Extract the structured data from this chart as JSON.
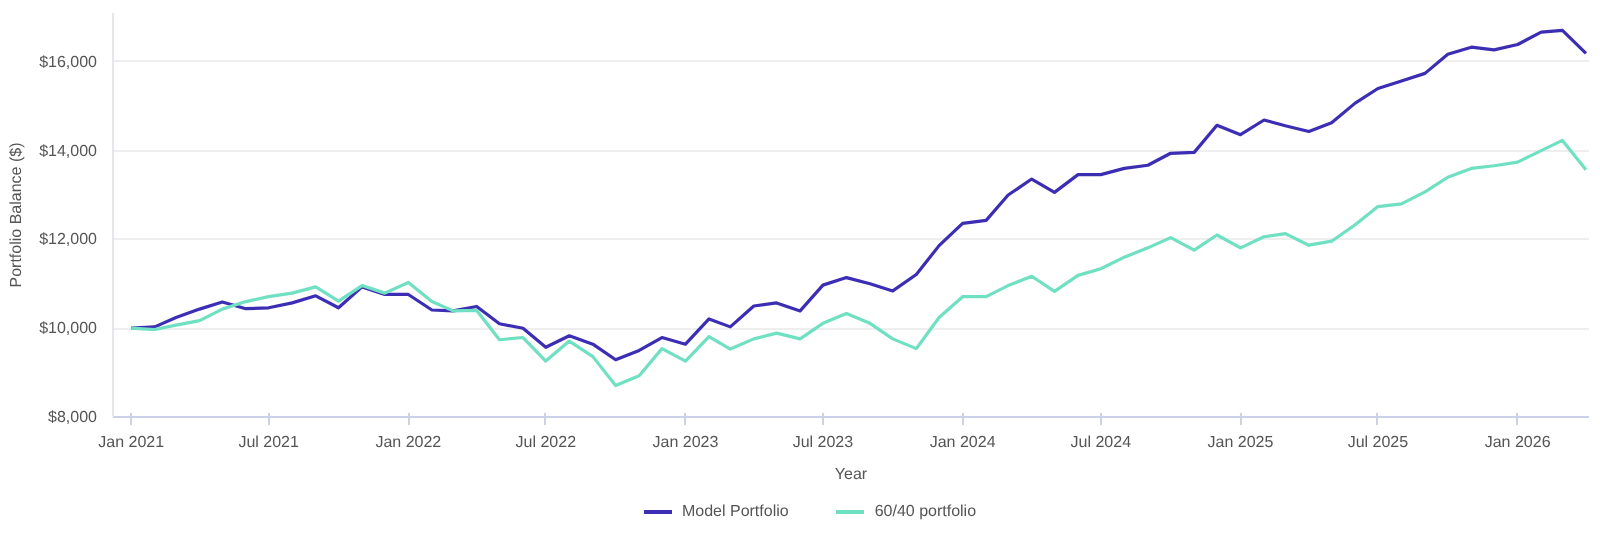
{
  "chart_data": {
    "type": "line",
    "xlabel": "Year",
    "ylabel": "Portfolio Balance ($)",
    "x": [
      "2021-01",
      "2021-02",
      "2021-03",
      "2021-04",
      "2021-05",
      "2021-06",
      "2021-07",
      "2021-08",
      "2021-09",
      "2021-10",
      "2021-11",
      "2021-12",
      "2022-01",
      "2022-02",
      "2022-03",
      "2022-04",
      "2022-05",
      "2022-06",
      "2022-07",
      "2022-08",
      "2022-09",
      "2022-10",
      "2022-11",
      "2022-12",
      "2023-01",
      "2023-02",
      "2023-03",
      "2023-04",
      "2023-05",
      "2023-06",
      "2023-07",
      "2023-08",
      "2023-09",
      "2023-10",
      "2023-11",
      "2023-12",
      "2024-01",
      "2024-02",
      "2024-03",
      "2024-04",
      "2024-05",
      "2024-06",
      "2024-07",
      "2024-08",
      "2024-09",
      "2024-10",
      "2024-11",
      "2024-12",
      "2025-01",
      "2025-02",
      "2025-03",
      "2025-04",
      "2025-05",
      "2025-06",
      "2025-07",
      "2025-08",
      "2025-09",
      "2025-10",
      "2025-11",
      "2025-12",
      "2026-01",
      "2026-02",
      "2026-03",
      "2026-04"
    ],
    "series": [
      {
        "name": "Model Portfolio",
        "color": "#3b2db4",
        "values": [
          10000,
          10030,
          10240,
          10430,
          10590,
          10440,
          10460,
          10570,
          10730,
          10460,
          10930,
          10760,
          10760,
          10410,
          10390,
          10490,
          10100,
          10000,
          9570,
          9830,
          9640,
          9290,
          9500,
          9790,
          9640,
          10210,
          10030,
          10500,
          10570,
          10390,
          10970,
          11140,
          11000,
          10840,
          11210,
          11860,
          12360,
          12430,
          13000,
          13360,
          13060,
          13460,
          13460,
          13600,
          13670,
          13940,
          13960,
          14570,
          14360,
          14690,
          14560,
          14430,
          14630,
          15070,
          15400,
          15570,
          15740,
          16170,
          16330,
          16270,
          16390,
          16670,
          16710,
          16190
        ]
      },
      {
        "name": "60/40 portfolio",
        "color": "#6fe0c2",
        "values": [
          10000,
          9970,
          10070,
          10170,
          10430,
          10600,
          10710,
          10790,
          10930,
          10610,
          10960,
          10790,
          11030,
          10600,
          10390,
          10400,
          9740,
          9790,
          9260,
          9710,
          9360,
          8710,
          8930,
          9540,
          9260,
          9810,
          9530,
          9760,
          9890,
          9760,
          10110,
          10330,
          10110,
          9760,
          9540,
          10240,
          10710,
          10710,
          10960,
          11170,
          10830,
          11190,
          11340,
          11600,
          11810,
          12040,
          11760,
          12100,
          11810,
          12060,
          12130,
          11870,
          11960,
          12330,
          12740,
          12800,
          13070,
          13400,
          13600,
          13660,
          13740,
          14000,
          14230,
          13570
        ]
      }
    ],
    "xlim": [
      "2020-12-08",
      "2026-04-05"
    ],
    "xticks": [
      {
        "value": "2021-01",
        "label": "Jan 2021"
      },
      {
        "value": "2021-07",
        "label": "Jul 2021"
      },
      {
        "value": "2022-01",
        "label": "Jan 2022"
      },
      {
        "value": "2022-07",
        "label": "Jul 2022"
      },
      {
        "value": "2023-01",
        "label": "Jan 2023"
      },
      {
        "value": "2023-07",
        "label": "Jul 2023"
      },
      {
        "value": "2024-01",
        "label": "Jan 2024"
      },
      {
        "value": "2024-07",
        "label": "Jul 2024"
      },
      {
        "value": "2025-01",
        "label": "Jan 2025"
      },
      {
        "value": "2025-07",
        "label": "Jul 2025"
      },
      {
        "value": "2026-01",
        "label": "Jan 2026"
      }
    ],
    "ylim": [
      8000,
      17100
    ],
    "yticks": [
      {
        "value": 8000,
        "label": "$8,000"
      },
      {
        "value": 10000,
        "label": "$10,000"
      },
      {
        "value": 12000,
        "label": "$12,000"
      },
      {
        "value": 14000,
        "label": "$14,000"
      },
      {
        "value": 16000,
        "label": "$16,000"
      }
    ],
    "grid": "y",
    "legend": "bottom",
    "marker": "none",
    "line_style": "solid"
  }
}
